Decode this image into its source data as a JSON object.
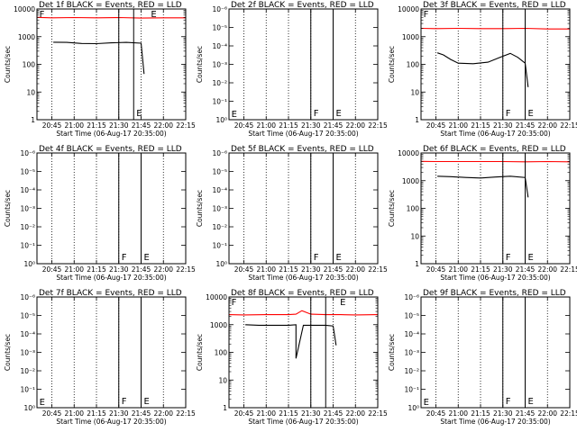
{
  "figure": {
    "xlabel": "Start Time (06-Aug-17 20:35:00)",
    "ylabel": "Counts/sec",
    "x_ticks": [
      "20:45",
      "21:00",
      "21:15",
      "21:30",
      "21:45",
      "22:00",
      "22:15"
    ],
    "y_ticks_log": [
      "1",
      "10",
      "100",
      "1000",
      "10000"
    ],
    "y_ticks_empty": [
      "10⁰",
      "10⁻¹",
      "10⁻²",
      "10⁻³",
      "10⁻⁴",
      "10⁻⁵",
      "10⁻⁶"
    ],
    "colors": {
      "events": "#000000",
      "lld": "#ff0000",
      "axes": "#000000",
      "background": "#ffffff"
    }
  },
  "chart_data": [
    {
      "type": "line",
      "title": "Det 1f BLACK = Events, RED = LLD",
      "xlabel": "Start Time (06-Aug-17 20:35:00)",
      "ylabel": "Counts/sec",
      "yscale": "log",
      "ylim": [
        1,
        10000
      ],
      "xlim": [
        "20:35",
        "22:15"
      ],
      "solid_markers": [
        {
          "time": "21:30"
        },
        {
          "time": "21:40",
          "label": "E"
        }
      ],
      "dotted_lines": [
        "20:45",
        "21:00",
        "21:15",
        "21:30",
        "21:45",
        "22:00",
        "22:15"
      ],
      "corner_labels": [
        {
          "text": "F",
          "time": "20:36",
          "y": 10000
        },
        {
          "text": "E",
          "time": "21:51",
          "y": 10000
        }
      ],
      "series": [
        {
          "name": "Events",
          "color": "#000000",
          "x": [
            "20:46",
            "20:55",
            "21:05",
            "21:15",
            "21:25",
            "21:35",
            "21:45",
            "21:47"
          ],
          "y": [
            630,
            620,
            570,
            560,
            600,
            620,
            580,
            45
          ]
        },
        {
          "name": "LLD",
          "color": "#ff0000",
          "x": [
            "20:35",
            "20:45",
            "21:00",
            "21:15",
            "21:30",
            "21:45",
            "22:00",
            "22:15"
          ],
          "y": [
            5000,
            4800,
            4900,
            4800,
            4900,
            4700,
            4800,
            4800
          ]
        }
      ]
    },
    {
      "type": "line",
      "title": "Det 2f BLACK = Events, RED = LLD",
      "xlabel": "Start Time (06-Aug-17 20:35:00)",
      "ylabel": "Counts/sec",
      "yscale": "linear",
      "ylim": [
        0,
        1
      ],
      "xlim": [
        "20:35",
        "22:15"
      ],
      "solid_markers": [
        {
          "time": "21:30",
          "label": "F"
        },
        {
          "time": "21:45",
          "label": "E"
        }
      ],
      "dotted_lines": [
        "20:45",
        "21:00",
        "21:15",
        "21:30",
        "21:45",
        "22:00",
        "22:15"
      ],
      "corner_labels": [
        {
          "text": "E",
          "time": "20:36",
          "y": 0.05
        }
      ],
      "series": []
    },
    {
      "type": "line",
      "title": "Det 3f BLACK = Events, RED = LLD",
      "xlabel": "Start Time (06-Aug-17 20:35:00)",
      "ylabel": "Counts/sec",
      "yscale": "log",
      "ylim": [
        1,
        10000
      ],
      "xlim": [
        "20:35",
        "22:15"
      ],
      "solid_markers": [
        {
          "time": "21:30",
          "label": "F"
        },
        {
          "time": "21:45",
          "label": "E"
        }
      ],
      "dotted_lines": [
        "20:45",
        "21:00",
        "21:15",
        "21:30",
        "21:45",
        "22:00",
        "22:15"
      ],
      "corner_labels": [
        {
          "text": "F",
          "time": "20:36",
          "y": 10000
        }
      ],
      "series": [
        {
          "name": "Events",
          "color": "#000000",
          "x": [
            "20:46",
            "20:50",
            "20:55",
            "21:00",
            "21:10",
            "21:20",
            "21:28",
            "21:35",
            "21:40",
            "21:45",
            "21:47"
          ],
          "y": [
            260,
            220,
            150,
            110,
            105,
            120,
            180,
            250,
            180,
            110,
            15
          ]
        },
        {
          "name": "LLD",
          "color": "#ff0000",
          "x": [
            "20:35",
            "20:45",
            "21:00",
            "21:15",
            "21:30",
            "21:45",
            "22:00",
            "22:15"
          ],
          "y": [
            2000,
            1950,
            2000,
            1950,
            1950,
            2000,
            1900,
            1900
          ]
        }
      ]
    },
    {
      "type": "line",
      "title": "Det 4f BLACK = Events, RED = LLD",
      "xlabel": "Start Time (06-Aug-17 20:35:00)",
      "ylabel": "Counts/sec",
      "yscale": "linear",
      "ylim": [
        0,
        1
      ],
      "xlim": [
        "20:35",
        "22:15"
      ],
      "solid_markers": [
        {
          "time": "21:30",
          "label": "F"
        },
        {
          "time": "21:45",
          "label": "E"
        }
      ],
      "dotted_lines": [
        "20:45",
        "21:00",
        "21:15",
        "21:30",
        "21:45",
        "22:00",
        "22:15"
      ],
      "corner_labels": [],
      "series": []
    },
    {
      "type": "line",
      "title": "Det 5f BLACK = Events, RED = LLD",
      "xlabel": "Start Time (06-Aug-17 20:35:00)",
      "ylabel": "Counts/sec",
      "yscale": "linear",
      "ylim": [
        0,
        1
      ],
      "xlim": [
        "20:35",
        "22:15"
      ],
      "solid_markers": [
        {
          "time": "21:30",
          "label": "F"
        },
        {
          "time": "21:45",
          "label": "E"
        }
      ],
      "dotted_lines": [
        "20:45",
        "21:00",
        "21:15",
        "21:30",
        "21:45",
        "22:00",
        "22:15"
      ],
      "corner_labels": [],
      "series": []
    },
    {
      "type": "line",
      "title": "Det 6f BLACK = Events, RED = LLD",
      "xlabel": "Start Time (06-Aug-17 20:35:00)",
      "ylabel": "Counts/sec",
      "yscale": "log",
      "ylim": [
        1,
        10000
      ],
      "xlim": [
        "20:35",
        "22:15"
      ],
      "solid_markers": [
        {
          "time": "21:30",
          "label": "F"
        },
        {
          "time": "21:45",
          "label": "E"
        }
      ],
      "dotted_lines": [
        "20:45",
        "21:00",
        "21:15",
        "21:30",
        "21:45",
        "22:00",
        "22:15"
      ],
      "corner_labels": [],
      "series": [
        {
          "name": "Events",
          "color": "#000000",
          "x": [
            "20:46",
            "20:55",
            "21:05",
            "21:15",
            "21:25",
            "21:35",
            "21:45",
            "21:47"
          ],
          "y": [
            1450,
            1400,
            1300,
            1250,
            1350,
            1450,
            1300,
            250
          ]
        },
        {
          "name": "LLD",
          "color": "#ff0000",
          "x": [
            "20:35",
            "20:45",
            "21:00",
            "21:15",
            "21:30",
            "21:45",
            "22:00",
            "22:15"
          ],
          "y": [
            5000,
            4900,
            4900,
            4900,
            4900,
            4800,
            4900,
            4800
          ]
        }
      ]
    },
    {
      "type": "line",
      "title": "Det 7f BLACK = Events, RED = LLD",
      "xlabel": "Start Time (06-Aug-17 20:35:00)",
      "ylabel": "Counts/sec",
      "yscale": "linear",
      "ylim": [
        0,
        1
      ],
      "xlim": [
        "20:35",
        "22:15"
      ],
      "solid_markers": [
        {
          "time": "21:30",
          "label": "F"
        },
        {
          "time": "21:45",
          "label": "E"
        }
      ],
      "dotted_lines": [
        "20:45",
        "21:00",
        "21:15",
        "21:30",
        "21:45",
        "22:00",
        "22:15"
      ],
      "corner_labels": [
        {
          "text": "E",
          "time": "20:36",
          "y": 0.05
        }
      ],
      "series": []
    },
    {
      "type": "line",
      "title": "Det 8f BLACK = Events, RED = LLD",
      "xlabel": "Start Time (06-Aug-17 20:35:00)",
      "ylabel": "Counts/sec",
      "yscale": "log",
      "ylim": [
        1,
        10000
      ],
      "xlim": [
        "20:35",
        "22:15"
      ],
      "solid_markers": [
        {
          "time": "21:30"
        },
        {
          "time": "21:40"
        }
      ],
      "dotted_lines": [
        "20:45",
        "21:00",
        "21:15",
        "21:30",
        "21:45",
        "22:00",
        "22:15"
      ],
      "corner_labels": [
        {
          "text": "F",
          "time": "20:36",
          "y": 10000
        },
        {
          "text": "E",
          "time": "21:49",
          "y": 10000
        }
      ],
      "series": [
        {
          "name": "Events",
          "color": "#000000",
          "x": [
            "20:46",
            "20:55",
            "21:05",
            "21:15",
            "21:20",
            "21:20",
            "21:25",
            "21:30",
            "21:35",
            "21:40",
            "21:45",
            "21:47"
          ],
          "y": [
            1000,
            950,
            950,
            950,
            1000,
            60,
            950,
            950,
            950,
            950,
            900,
            180
          ]
        },
        {
          "name": "LLD",
          "color": "#ff0000",
          "x": [
            "20:35",
            "20:45",
            "21:00",
            "21:15",
            "21:20",
            "21:24",
            "21:30",
            "21:40",
            "21:50",
            "22:00",
            "22:15"
          ],
          "y": [
            2300,
            2250,
            2300,
            2300,
            2400,
            3200,
            2400,
            2300,
            2300,
            2250,
            2300
          ]
        }
      ]
    },
    {
      "type": "line",
      "title": "Det 9f BLACK = Events, RED = LLD",
      "xlabel": "Start Time (06-Aug-17 20:35:00)",
      "ylabel": "Counts/sec",
      "yscale": "linear",
      "ylim": [
        0,
        1
      ],
      "xlim": [
        "20:35",
        "22:15"
      ],
      "solid_markers": [
        {
          "time": "21:30",
          "label": "F"
        },
        {
          "time": "21:45",
          "label": "E"
        }
      ],
      "dotted_lines": [
        "20:45",
        "21:00",
        "21:15",
        "21:30",
        "21:45",
        "22:00",
        "22:15"
      ],
      "corner_labels": [
        {
          "text": "E",
          "time": "20:36",
          "y": 0.05
        }
      ],
      "series": []
    }
  ]
}
